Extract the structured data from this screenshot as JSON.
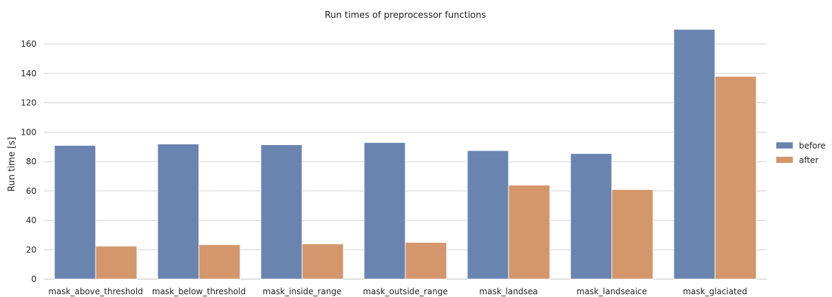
{
  "chart_data": {
    "type": "bar",
    "title": "Run times of preprocessor functions",
    "xlabel": "",
    "ylabel": "Run time [s]",
    "ylim": [
      0,
      175
    ],
    "yticks": [
      0,
      20,
      40,
      60,
      80,
      100,
      120,
      140,
      160
    ],
    "grid": "horizontal",
    "legend_position": "right",
    "categories": [
      "mask_above_threshold",
      "mask_below_threshold",
      "mask_inside_range",
      "mask_outside_range",
      "mask_landsea",
      "mask_landseaice",
      "mask_glaciated"
    ],
    "series": [
      {
        "name": "before",
        "color": "#6a84b0",
        "values": [
          91,
          92,
          91.5,
          93,
          87.5,
          85.5,
          170
        ]
      },
      {
        "name": "after",
        "color": "#d4966b",
        "values": [
          22.5,
          23.5,
          24,
          25,
          64,
          61,
          138
        ]
      }
    ]
  }
}
